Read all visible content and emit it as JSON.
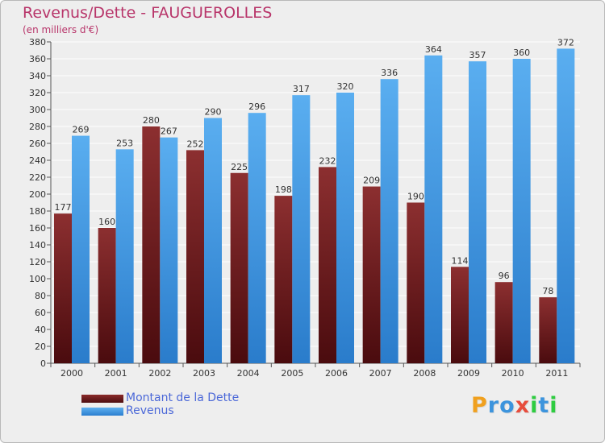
{
  "chart_data": {
    "type": "bar",
    "title": "Revenus/Dette - FAUGUEROLLES",
    "subtitle": "(en milliers d'€)",
    "categories": [
      "2000",
      "2001",
      "2002",
      "2003",
      "2004",
      "2005",
      "2006",
      "2007",
      "2008",
      "2009",
      "2010",
      "2011"
    ],
    "series": [
      {
        "name": "Montant de la Dette",
        "values": [
          177,
          160,
          280,
          252,
          225,
          198,
          232,
          209,
          190,
          114,
          96,
          78
        ],
        "color": "#7a1f22"
      },
      {
        "name": "Revenus",
        "values": [
          269,
          253,
          267,
          290,
          296,
          317,
          320,
          336,
          364,
          357,
          360,
          372
        ],
        "color": "#3c94dd"
      }
    ],
    "ylim": [
      0,
      380
    ],
    "ytick_step": 20,
    "grid": true,
    "legend_position": "bottom-left"
  },
  "logo": {
    "text": "Proxiti",
    "letters": [
      "P",
      "r",
      "o",
      "x",
      "i",
      "t",
      "i"
    ],
    "colors": [
      "#f0a01e",
      "#3c94dd",
      "#3c94dd",
      "#e74c3c",
      "#2ecc40",
      "#3c94dd",
      "#2ecc40"
    ]
  }
}
